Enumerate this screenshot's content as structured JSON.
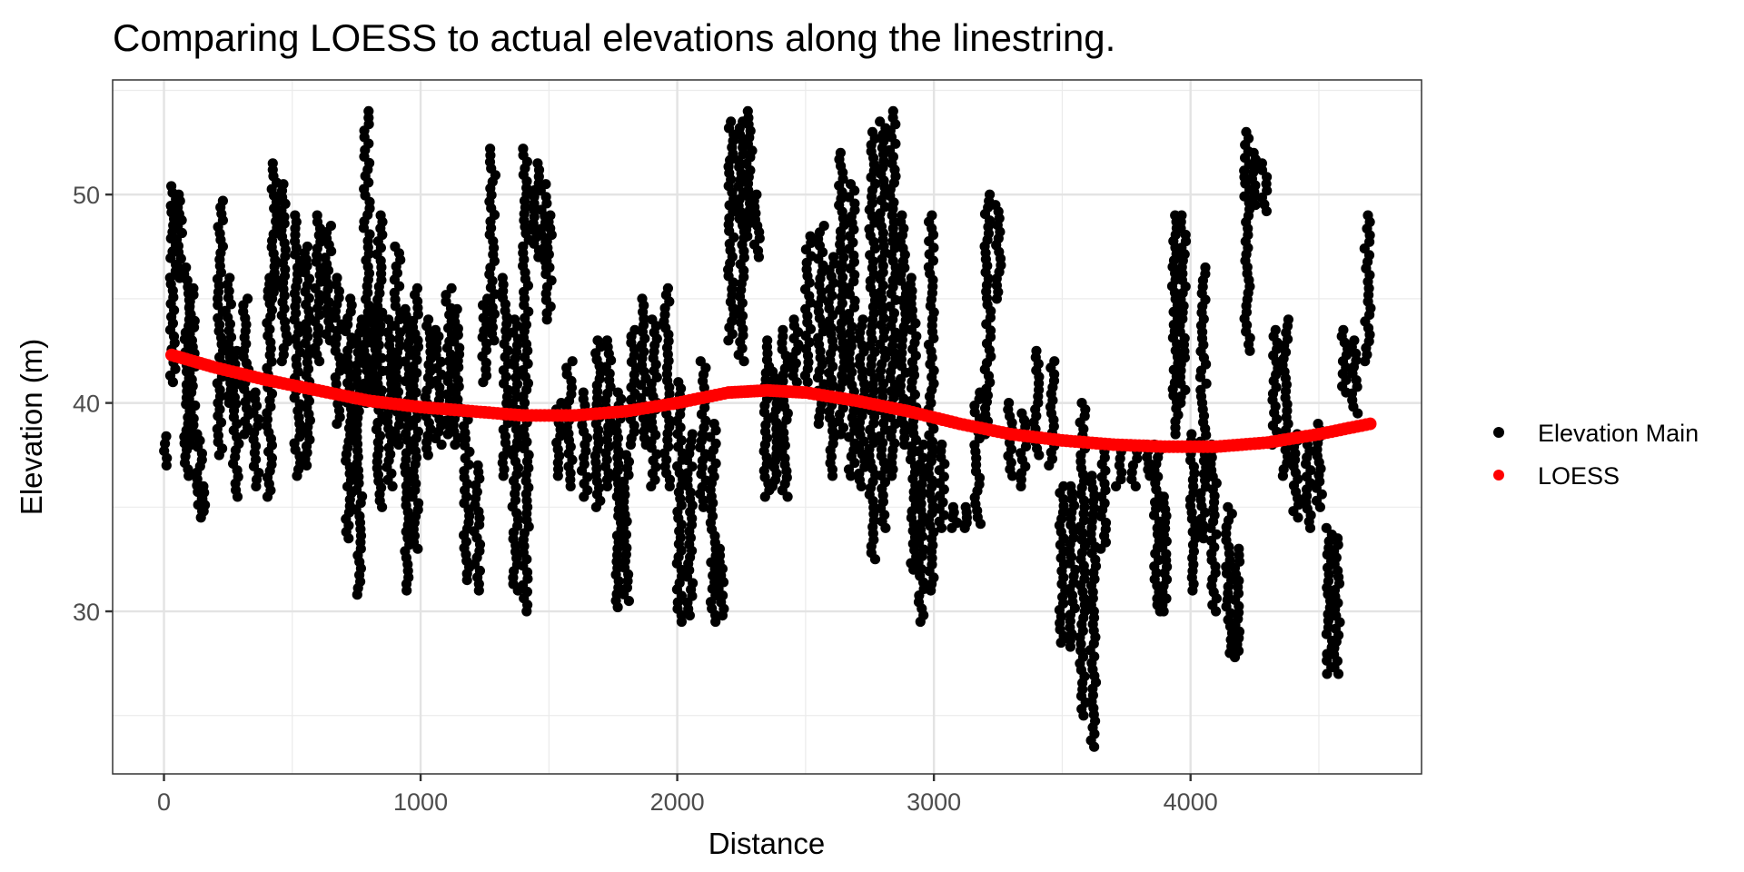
{
  "chart_data": {
    "type": "scatter",
    "title": "Comparing LOESS to actual elevations along the linestring.",
    "xlabel": "Distance",
    "ylabel": "Elevation (m)",
    "xlim": [
      -200,
      4900
    ],
    "ylim": [
      22.2,
      55.5
    ],
    "xticks": [
      0,
      1000,
      2000,
      3000,
      4000
    ],
    "xtick_labels": [
      "0",
      "1000",
      "2000",
      "3000",
      "4000"
    ],
    "yticks": [
      30,
      40,
      50
    ],
    "ytick_labels": [
      "30",
      "40",
      "50"
    ],
    "grid": true,
    "legend": {
      "placement": "right",
      "entries": [
        "Elevation Main",
        "LOESS"
      ]
    },
    "colors": {
      "Elevation Main": "#000000",
      "LOESS": "#ff0000"
    },
    "series": [
      {
        "name": "Elevation Main",
        "note_format": "vertical point streaks [distance, min_elevation, max_elevation]",
        "streaks": [
          [
            10,
            37.0,
            38.4
          ],
          [
            35,
            41.0,
            50.4
          ],
          [
            60,
            46.0,
            50.0
          ],
          [
            90,
            36.5,
            46.5
          ],
          [
            110,
            38.0,
            45.5
          ],
          [
            140,
            34.5,
            38.5
          ],
          [
            160,
            34.8,
            36.0
          ],
          [
            220,
            37.5,
            49.7
          ],
          [
            250,
            40.0,
            46.0
          ],
          [
            280,
            35.5,
            42.5
          ],
          [
            320,
            38.5,
            45.0
          ],
          [
            360,
            36.0,
            40.5
          ],
          [
            410,
            35.5,
            46.0
          ],
          [
            430,
            45.0,
            51.5
          ],
          [
            470,
            42.0,
            50.5
          ],
          [
            520,
            36.5,
            49.0
          ],
          [
            560,
            37.0,
            47.5
          ],
          [
            600,
            42.0,
            49.0
          ],
          [
            640,
            43.0,
            48.5
          ],
          [
            680,
            39.0,
            46.0
          ],
          [
            720,
            33.5,
            45.0
          ],
          [
            760,
            30.8,
            44.0
          ],
          [
            790,
            40.0,
            54.0
          ],
          [
            820,
            40.0,
            44.5
          ],
          [
            840,
            35.0,
            49.0
          ],
          [
            880,
            36.0,
            44.0
          ],
          [
            910,
            38.0,
            47.5
          ],
          [
            950,
            31.0,
            44.5
          ],
          [
            980,
            33.0,
            45.5
          ],
          [
            1030,
            37.5,
            44.0
          ],
          [
            1070,
            38.0,
            43.5
          ],
          [
            1110,
            38.5,
            45.5
          ],
          [
            1140,
            38.0,
            44.5
          ],
          [
            1180,
            31.5,
            39.5
          ],
          [
            1220,
            31.0,
            37.0
          ],
          [
            1250,
            41.0,
            45.0
          ],
          [
            1280,
            43.0,
            52.2
          ],
          [
            1330,
            36.5,
            46.0
          ],
          [
            1370,
            31.0,
            44.0
          ],
          [
            1410,
            30.0,
            52.2
          ],
          [
            1450,
            47.0,
            51.5
          ],
          [
            1480,
            46.5,
            50.5
          ],
          [
            1500,
            44.0,
            49.0
          ],
          [
            1540,
            36.5,
            40.0
          ],
          [
            1580,
            36.0,
            42.0
          ],
          [
            1640,
            35.5,
            40.5
          ],
          [
            1690,
            35.0,
            43.0
          ],
          [
            1730,
            36.0,
            43.0
          ],
          [
            1770,
            30.2,
            40.5
          ],
          [
            1800,
            30.5,
            37.5
          ],
          [
            1830,
            38.0,
            43.5
          ],
          [
            1870,
            38.0,
            45.0
          ],
          [
            1910,
            36.0,
            44.0
          ],
          [
            1960,
            36.0,
            45.5
          ],
          [
            2010,
            29.5,
            41.0
          ],
          [
            2050,
            29.8,
            38.5
          ],
          [
            2100,
            35.0,
            42.0
          ],
          [
            2140,
            29.5,
            39.0
          ],
          [
            2170,
            29.8,
            33.0
          ],
          [
            2210,
            43.0,
            53.5
          ],
          [
            2250,
            42.0,
            53.5
          ],
          [
            2280,
            48.0,
            54.0
          ],
          [
            2310,
            47.0,
            50.0
          ],
          [
            2350,
            35.5,
            43.0
          ],
          [
            2380,
            36.0,
            41.5
          ],
          [
            2420,
            35.5,
            43.5
          ],
          [
            2460,
            41.0,
            44.0
          ],
          [
            2510,
            41.0,
            48.0
          ],
          [
            2560,
            39.0,
            48.5
          ],
          [
            2600,
            36.5,
            47.0
          ],
          [
            2640,
            38.5,
            52.0
          ],
          [
            2680,
            36.5,
            50.5
          ],
          [
            2720,
            36.0,
            44.0
          ],
          [
            2760,
            32.5,
            53.0
          ],
          [
            2800,
            34.0,
            53.5
          ],
          [
            2840,
            36.5,
            54.0
          ],
          [
            2880,
            38.0,
            49.0
          ],
          [
            2920,
            32.0,
            46.0
          ],
          [
            2950,
            29.5,
            38.0
          ],
          [
            2990,
            31.0,
            49.0
          ],
          [
            3030,
            34.0,
            38.0
          ],
          [
            3080,
            34.0,
            35.0
          ],
          [
            3120,
            34.0,
            35.0
          ],
          [
            3170,
            34.2,
            40.5
          ],
          [
            3210,
            38.5,
            50.0
          ],
          [
            3250,
            45.0,
            49.5
          ],
          [
            3300,
            36.5,
            40.0
          ],
          [
            3350,
            36.0,
            39.5
          ],
          [
            3400,
            37.5,
            42.5
          ],
          [
            3460,
            37.0,
            42.0
          ],
          [
            3500,
            28.5,
            36.0
          ],
          [
            3540,
            28.3,
            36.0
          ],
          [
            3580,
            25.0,
            40.0
          ],
          [
            3620,
            23.5,
            36.5
          ],
          [
            3660,
            33.0,
            38.0
          ],
          [
            3720,
            36.0,
            38.0
          ],
          [
            3780,
            36.0,
            38.0
          ],
          [
            3830,
            36.5,
            38.0
          ],
          [
            3870,
            30.0,
            38.0
          ],
          [
            3900,
            30.0,
            35.5
          ],
          [
            3940,
            38.5,
            49.0
          ],
          [
            3970,
            40.0,
            49.0
          ],
          [
            4010,
            31.0,
            38.5
          ],
          [
            4050,
            33.5,
            46.5
          ],
          [
            4090,
            30.0,
            38.0
          ],
          [
            4150,
            28.0,
            35.0
          ],
          [
            4180,
            27.8,
            33.0
          ],
          [
            4220,
            42.5,
            53.0
          ],
          [
            4250,
            49.5,
            52.0
          ],
          [
            4290,
            49.2,
            51.5
          ],
          [
            4330,
            38.0,
            43.5
          ],
          [
            4370,
            36.5,
            44.0
          ],
          [
            4410,
            34.5,
            38.5
          ],
          [
            4460,
            34.0,
            38.0
          ],
          [
            4500,
            35.0,
            39.0
          ],
          [
            4540,
            27.0,
            34.0
          ],
          [
            4570,
            27.0,
            33.5
          ],
          [
            4600,
            40.5,
            43.5
          ],
          [
            4640,
            39.5,
            43.0
          ],
          [
            4690,
            42.0,
            49.0
          ]
        ]
      },
      {
        "name": "LOESS",
        "x": [
          30,
          200,
          400,
          600,
          800,
          1000,
          1200,
          1400,
          1600,
          1800,
          2000,
          2200,
          2350,
          2500,
          2700,
          2900,
          3100,
          3300,
          3500,
          3700,
          3900,
          4100,
          4300,
          4500,
          4700
        ],
        "y": [
          42.3,
          41.7,
          41.1,
          40.6,
          40.1,
          39.8,
          39.6,
          39.4,
          39.4,
          39.6,
          40.0,
          40.5,
          40.6,
          40.5,
          40.1,
          39.6,
          39.0,
          38.5,
          38.2,
          38.0,
          37.9,
          37.9,
          38.1,
          38.5,
          39.0
        ]
      }
    ]
  }
}
